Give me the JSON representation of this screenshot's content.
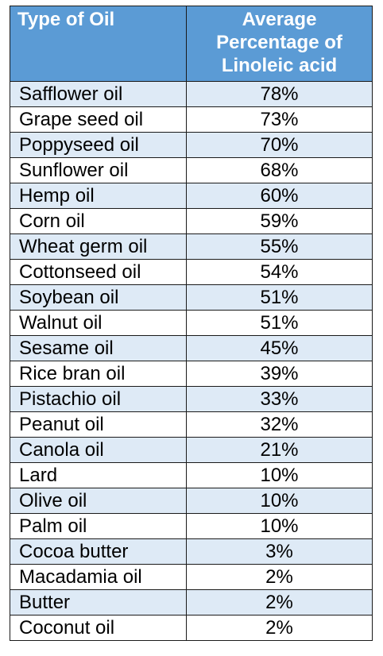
{
  "chart_data": {
    "type": "table",
    "columns": [
      "Type of Oil",
      "Average Percentage of Linoleic acid"
    ],
    "header_lines": [
      "Average",
      "Percentage of",
      "Linoleic acid"
    ],
    "rows": [
      {
        "oil": "Safflower oil",
        "value": "78%"
      },
      {
        "oil": "Grape seed oil",
        "value": "73%"
      },
      {
        "oil": "Poppyseed oil",
        "value": "70%"
      },
      {
        "oil": "Sunflower oil",
        "value": "68%"
      },
      {
        "oil": "Hemp oil",
        "value": "60%"
      },
      {
        "oil": "Corn oil",
        "value": "59%"
      },
      {
        "oil": "Wheat germ oil",
        "value": "55%"
      },
      {
        "oil": "Cottonseed oil",
        "value": "54%"
      },
      {
        "oil": "Soybean oil",
        "value": "51%"
      },
      {
        "oil": "Walnut oil",
        "value": "51%"
      },
      {
        "oil": "Sesame oil",
        "value": "45%"
      },
      {
        "oil": "Rice bran oil",
        "value": "39%"
      },
      {
        "oil": "Pistachio oil",
        "value": "33%"
      },
      {
        "oil": "Peanut oil",
        "value": "32%"
      },
      {
        "oil": "Canola oil",
        "value": "21%"
      },
      {
        "oil": "Lard",
        "value": "10%"
      },
      {
        "oil": "Olive oil",
        "value": "10%"
      },
      {
        "oil": "Palm oil",
        "value": "10%"
      },
      {
        "oil": "Cocoa butter",
        "value": "3%"
      },
      {
        "oil": "Macadamia oil",
        "value": "2%"
      },
      {
        "oil": "Butter",
        "value": "2%"
      },
      {
        "oil": "Coconut oil",
        "value": "2%"
      }
    ]
  },
  "colors": {
    "header_bg": "#5b9bd5",
    "header_text": "#ffffff",
    "band_row": "#deeaf6",
    "plain_row": "#ffffff",
    "border": "#1a1a1a"
  }
}
